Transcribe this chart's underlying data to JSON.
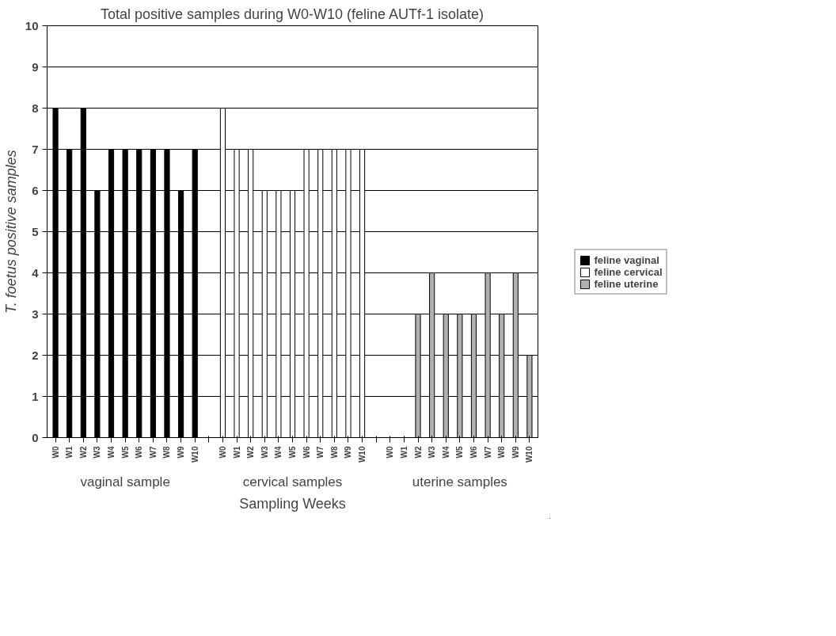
{
  "chart_data": {
    "type": "bar",
    "title": "Total positive samples during W0-W10 (feline AUTf-1 isolate)",
    "xlabel": "Sampling Weeks",
    "ylabel": "T. foetus positive samples",
    "categories": [
      "W0",
      "W1",
      "W2",
      "W3",
      "W4",
      "W5",
      "W6",
      "W7",
      "W8",
      "W9",
      "W10",
      null,
      "W0",
      "W1",
      "W2",
      "W3",
      "W4",
      "W5",
      "W6",
      "W7",
      "W8",
      "W9",
      "W10",
      null,
      "W0",
      "W1",
      "W2",
      "W3",
      "W4",
      "W5",
      "W6",
      "W7",
      "W8",
      "W9",
      "W10"
    ],
    "series": [
      {
        "name": "feline vaginal",
        "color": "#000000",
        "values": [
          8,
          7,
          8,
          6,
          7,
          7,
          7,
          7,
          7,
          6,
          7,
          null,
          null,
          null,
          null,
          null,
          null,
          null,
          null,
          null,
          null,
          null,
          null,
          null,
          null,
          null,
          null,
          null,
          null,
          null,
          null,
          null,
          null,
          null,
          null
        ]
      },
      {
        "name": "feline cervical",
        "color": "#ffffff",
        "values": [
          null,
          null,
          null,
          null,
          null,
          null,
          null,
          null,
          null,
          null,
          null,
          null,
          8,
          7,
          7,
          6,
          6,
          6,
          7,
          7,
          7,
          7,
          7,
          null,
          null,
          null,
          null,
          null,
          null,
          null,
          null,
          null,
          null,
          null,
          null
        ]
      },
      {
        "name": "feline uterine",
        "color": "#b0b0b0",
        "values": [
          null,
          null,
          null,
          null,
          null,
          null,
          null,
          null,
          null,
          null,
          null,
          null,
          null,
          null,
          null,
          null,
          null,
          null,
          null,
          null,
          null,
          null,
          null,
          null,
          null,
          null,
          3,
          4,
          3,
          3,
          3,
          4,
          3,
          4,
          2
        ]
      }
    ],
    "annotations": [
      "vaginal sample",
      "cervical samples",
      "uterine samples"
    ],
    "ylim": [
      0,
      10
    ],
    "yticks": [
      0,
      1,
      2,
      3,
      4,
      5,
      6,
      7,
      8,
      9,
      10
    ],
    "grid": "y",
    "legend": "right"
  }
}
